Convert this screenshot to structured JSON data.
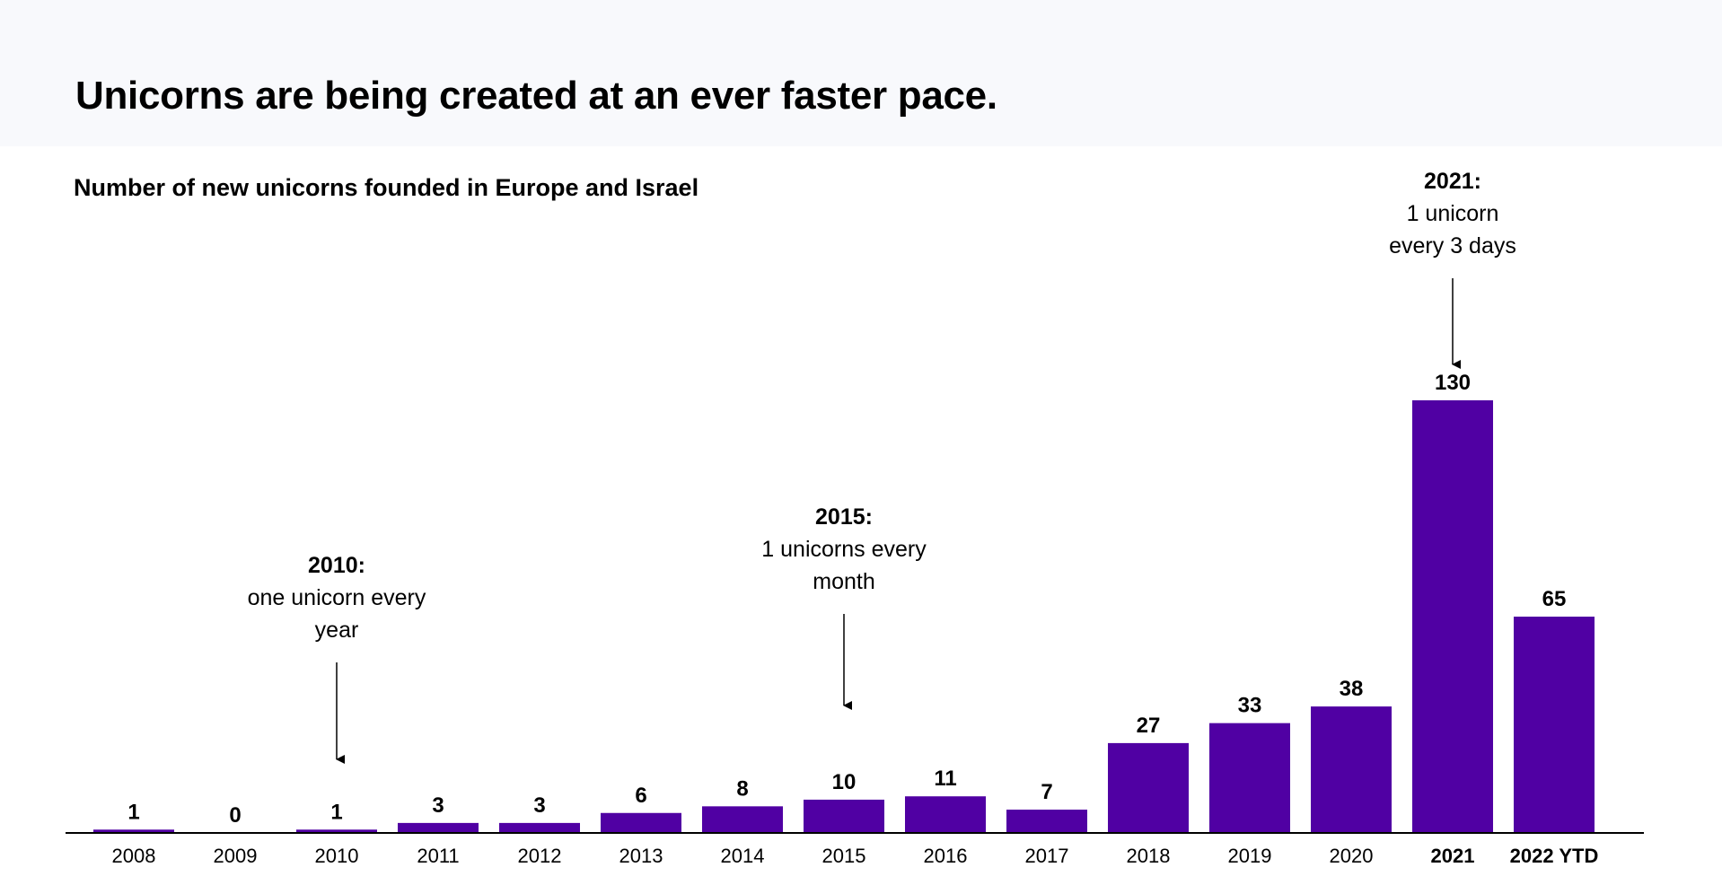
{
  "header": {
    "title": "Unicorns are being created at an ever faster pace."
  },
  "chart_data": {
    "type": "bar",
    "title": "Number of new unicorns founded in Europe and Israel",
    "xlabel": "",
    "ylabel": "",
    "ylim": [
      0,
      130
    ],
    "grid": false,
    "bar_color": "#5000a3",
    "categories": [
      "2008",
      "2009",
      "2010",
      "2011",
      "2012",
      "2013",
      "2014",
      "2015",
      "2016",
      "2017",
      "2018",
      "2019",
      "2020",
      "2021",
      "2022 YTD"
    ],
    "values": [
      1,
      0,
      1,
      3,
      3,
      6,
      8,
      10,
      11,
      7,
      27,
      33,
      38,
      130,
      65
    ],
    "bold_categories": [
      "2021",
      "2022 YTD"
    ],
    "annotations": [
      {
        "category": "2010",
        "heading": "2010:",
        "lines": [
          "one unicorn every",
          "year"
        ]
      },
      {
        "category": "2015",
        "heading": "2015:",
        "lines": [
          "1 unicorns every",
          "month"
        ]
      },
      {
        "category": "2021",
        "heading": "2021:",
        "lines": [
          "1 unicorn",
          "every 3 days"
        ]
      }
    ]
  }
}
